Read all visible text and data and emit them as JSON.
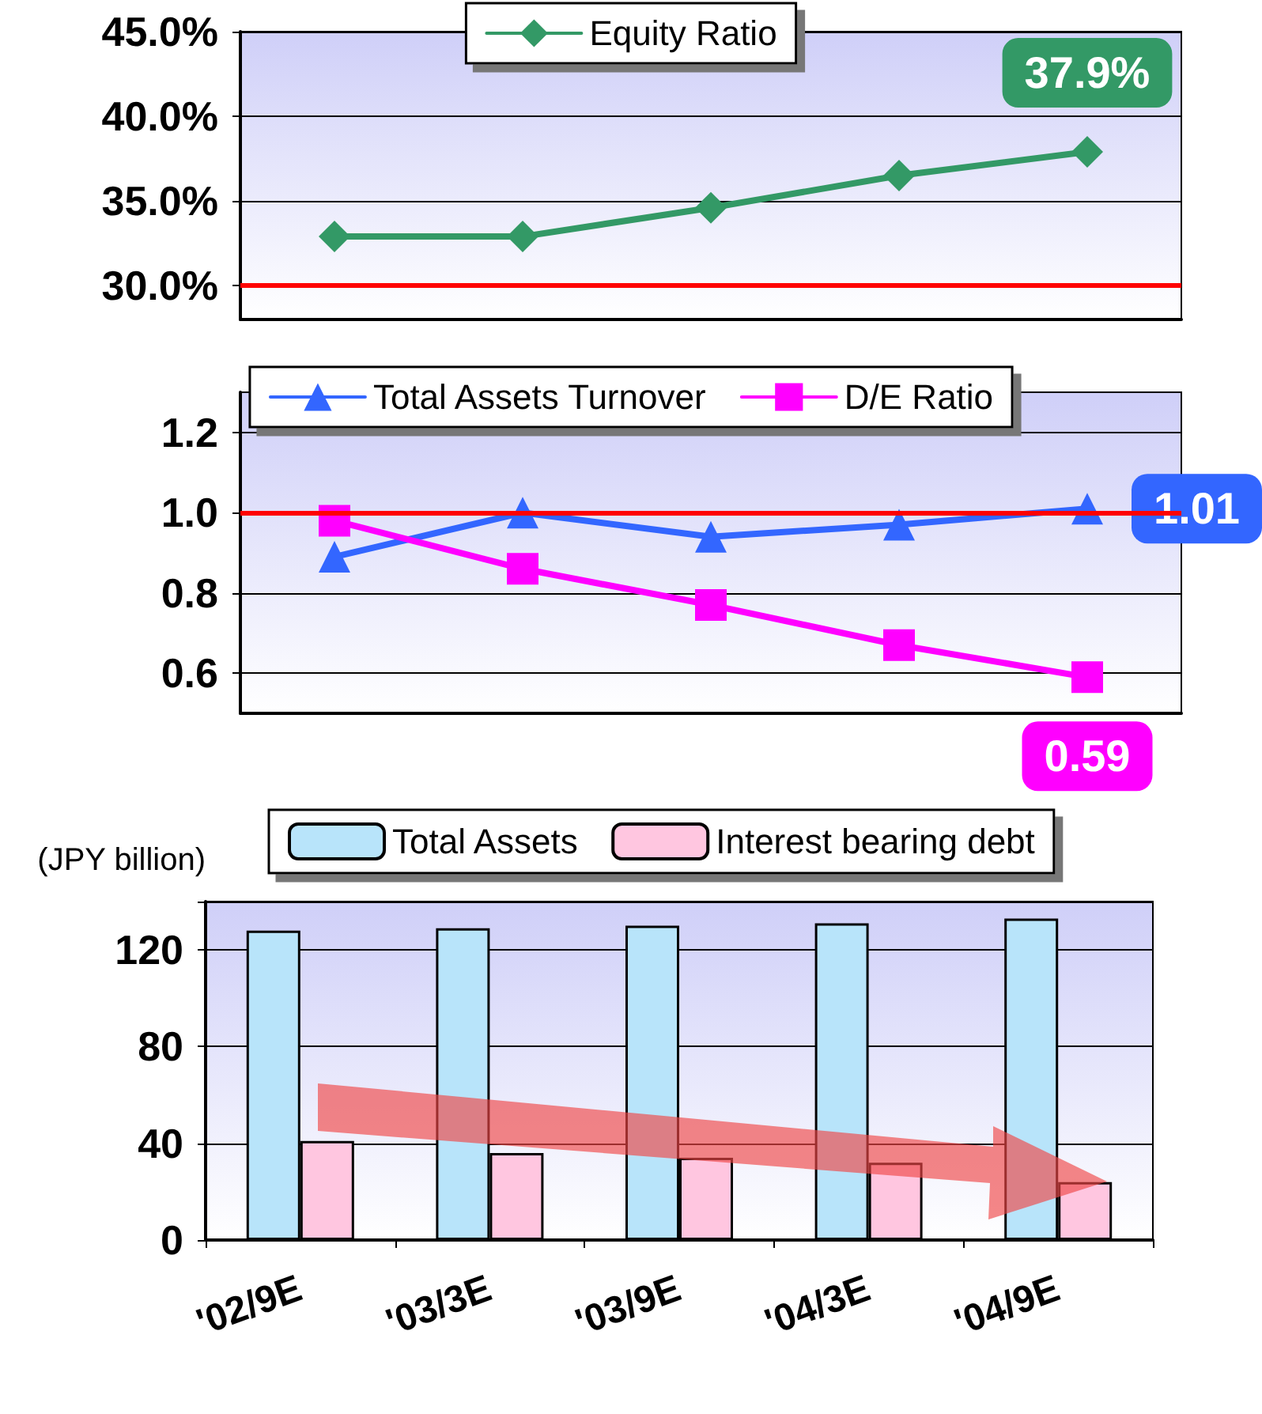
{
  "chart_data": [
    {
      "type": "line",
      "categories": [
        null,
        null,
        null,
        null,
        null
      ],
      "ylim": [
        28,
        45
      ],
      "yticks": [
        {
          "value": 30,
          "label": "30.0%"
        },
        {
          "value": 35,
          "label": "35.0%"
        },
        {
          "value": 40,
          "label": "40.0%"
        },
        {
          "value": 45,
          "label": "45.0%"
        }
      ],
      "grid": "y",
      "legend": "top",
      "tick_labels": "y",
      "marker": "diamond",
      "series": [
        {
          "name": "Equity Ratio",
          "color": "#339966",
          "values": [
            32.9,
            32.9,
            34.6,
            36.5,
            37.9
          ],
          "value_labels": [
            null,
            null,
            null,
            null,
            "37.9%"
          ]
        }
      ],
      "ref_lines": [
        {
          "axis": "y",
          "value": 30,
          "color": "#ff0000"
        }
      ]
    },
    {
      "type": "line",
      "categories": [
        null,
        null,
        null,
        null,
        null
      ],
      "ylim": [
        0.5,
        1.3
      ],
      "yticks": [
        0.6,
        0.8,
        {
          "value": 1,
          "label": "1.0"
        },
        1.2
      ],
      "grid": "y",
      "legend": "top",
      "tick_labels": "y",
      "series": [
        {
          "name": "Total Assets Turnover",
          "color": "#3366ff",
          "marker": "triangle",
          "values": [
            0.89,
            1.0,
            0.94,
            0.97,
            1.01
          ],
          "value_labels": [
            null,
            null,
            null,
            null,
            "1.01"
          ]
        },
        {
          "name": "D/E Ratio",
          "color": "#ff00ff",
          "marker": "square",
          "values": [
            0.98,
            0.86,
            0.77,
            0.67,
            0.59
          ],
          "value_labels": [
            null,
            null,
            null,
            null,
            "0.59"
          ]
        }
      ],
      "ref_lines": [
        {
          "axis": "y",
          "value": 1,
          "color": "#ff0000"
        }
      ]
    },
    {
      "type": "bar",
      "ylabel": "(JPY billion)",
      "categories": [
        "'02/9E",
        "'03/3E",
        "'03/9E",
        "'04/3E",
        "'04/9E"
      ],
      "ylim": [
        0,
        140
      ],
      "yticks": [
        0,
        40,
        80,
        120
      ],
      "grid": "y",
      "legend": "top",
      "series": [
        {
          "name": "Total Assets",
          "color": "#b8e4fa",
          "values": [
            128,
            129,
            130,
            131,
            133
          ]
        },
        {
          "name": "Interest bearing debt",
          "color": "#ffc6e0",
          "values": [
            41,
            36,
            34,
            32,
            24
          ]
        }
      ]
    }
  ]
}
